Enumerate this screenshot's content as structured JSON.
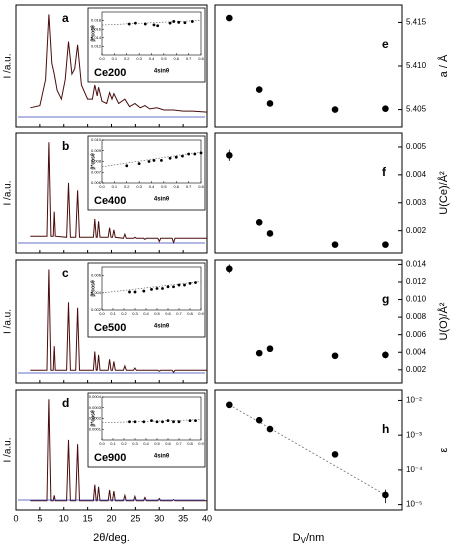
{
  "chart_data": [
    {
      "type": "line",
      "label": "a",
      "ylabel": "I /a.u.",
      "x": [
        3,
        5,
        6.2,
        6.9,
        7.5,
        8,
        8.6,
        9.5,
        10.3,
        11,
        11.7,
        12.3,
        12.9,
        13.7,
        15,
        16,
        16.5,
        17,
        17.3,
        18,
        19,
        19.6,
        20.1,
        20.5,
        21.5,
        22.8,
        23.8,
        24.9,
        26,
        27,
        28,
        29.5,
        31,
        33,
        35,
        37,
        40
      ],
      "series": [
        {
          "color": "#4a0c0c",
          "values": [
            14,
            16,
            40,
            100,
            55,
            45,
            30,
            22,
            40,
            75,
            45,
            50,
            72,
            35,
            22,
            22,
            35,
            25,
            33,
            20,
            18,
            28,
            22,
            27,
            18,
            22,
            15,
            18,
            14,
            16,
            13,
            14,
            12,
            12,
            11,
            11,
            10
          ]
        }
      ],
      "xlim": [
        0,
        40
      ],
      "ylim": [
        0,
        105
      ],
      "inset": {
        "sample": "Ce200",
        "xlabel": "4sinθ",
        "ylabel": "β*cosθ",
        "x": [
          0.22,
          0.27,
          0.35,
          0.42,
          0.45,
          0.55,
          0.58,
          0.62,
          0.67,
          0.73
        ],
        "values": [
          0.0172,
          0.0174,
          0.0172,
          0.017,
          0.0168,
          0.0174,
          0.0178,
          0.0176,
          0.0175,
          0.0178
        ],
        "xlim": [
          0,
          0.8
        ],
        "xticks": [
          {
            "value": 0,
            "label": "0.0"
          },
          0.1,
          0.2,
          0.3,
          0.4,
          0.5,
          0.6,
          0.7,
          0.8
        ],
        "ylim": [
          0.01,
          0.02
        ],
        "yticks": [
          {
            "value": 0.012,
            "label": "0.012"
          },
          {
            "value": 0.014,
            "label": "0.014"
          },
          {
            "value": 0.016,
            "label": "0.016"
          },
          {
            "value": 0.018,
            "label": "0.018"
          }
        ]
      }
    },
    {
      "type": "line",
      "label": "b",
      "ylabel": "I /a.u.",
      "x": [
        3,
        6.5,
        6.9,
        7.3,
        7.8,
        8,
        8.2,
        10.6,
        11,
        11.4,
        12.5,
        12.9,
        13.3,
        16.2,
        16.5,
        16.8,
        17,
        17.3,
        17.6,
        19.3,
        19.6,
        19.9,
        20.2,
        20.5,
        20.8,
        22.5,
        22.8,
        23.1,
        24.6,
        24.9,
        25.2,
        26.7,
        27,
        27.3,
        29.7,
        30,
        30.3,
        32.7,
        33,
        33.3,
        40
      ],
      "series": [
        {
          "color": "#4a0c0c",
          "values": [
            12,
            12,
            100,
            12,
            12,
            35,
            12,
            11,
            62,
            11,
            11,
            55,
            11,
            11,
            28,
            11,
            11,
            26,
            11,
            11,
            20,
            11,
            11,
            18,
            11,
            10,
            14,
            10,
            10,
            11,
            10,
            10,
            9,
            10,
            10,
            7,
            10,
            10,
            6,
            10,
            10
          ]
        }
      ],
      "xlim": [
        0,
        40
      ],
      "ylim": [
        0,
        105
      ],
      "inset": {
        "sample": "Ce400",
        "xlabel": "4sinθ",
        "ylabel": "β*cosθ",
        "x": [
          0.2,
          0.3,
          0.38,
          0.42,
          0.48,
          0.55,
          0.6,
          0.65,
          0.7,
          0.75,
          0.8
        ],
        "values": [
          0.0076,
          0.0078,
          0.008,
          0.0081,
          0.0081,
          0.0083,
          0.0084,
          0.0085,
          0.0087,
          0.0087,
          0.0088
        ],
        "xlim": [
          0,
          0.8
        ],
        "xticks": [
          {
            "value": 0,
            "label": "0.0"
          },
          0.1,
          0.2,
          0.3,
          0.4,
          0.5,
          0.6,
          0.7,
          0.8
        ],
        "ylim": [
          0.006,
          0.01
        ],
        "yticks": [
          {
            "value": 0.006,
            "label": "0.006"
          },
          0.007,
          {
            "value": 0.008,
            "label": "0.008"
          },
          0.009,
          {
            "value": 0.01,
            "label": "0.010"
          }
        ]
      }
    },
    {
      "type": "line",
      "label": "c",
      "ylabel": "I /a.u.",
      "x": [
        3,
        6.5,
        6.9,
        7.3,
        7.8,
        8,
        8.2,
        10.6,
        11,
        11.4,
        12.5,
        12.9,
        13.3,
        16.2,
        16.5,
        16.8,
        17,
        17.3,
        17.6,
        19.3,
        19.6,
        19.9,
        20.2,
        20.5,
        20.8,
        22.5,
        22.8,
        23.1,
        24.6,
        24.9,
        25.2,
        26.7,
        27,
        27.3,
        29.7,
        30,
        30.3,
        32.7,
        33,
        33.3,
        40
      ],
      "series": [
        {
          "color": "#4a0c0c",
          "values": [
            8,
            8,
            100,
            8,
            8,
            30,
            8,
            8,
            70,
            8,
            8,
            65,
            8,
            8,
            25,
            8,
            8,
            22,
            8,
            8,
            18,
            8,
            8,
            16,
            8,
            8,
            12,
            8,
            8,
            10,
            8,
            8,
            8,
            8,
            8,
            7,
            8,
            8,
            6,
            8,
            8
          ]
        }
      ],
      "xlim": [
        0,
        40
      ],
      "ylim": [
        0,
        105
      ],
      "inset": {
        "sample": "Ce500",
        "xlabel": "4sinθ",
        "ylabel": "β*cosθ",
        "x": [
          0.25,
          0.3,
          0.38,
          0.45,
          0.5,
          0.55,
          0.6,
          0.65,
          0.7,
          0.75,
          0.8,
          0.85
        ],
        "values": [
          0.0041,
          0.0041,
          0.0042,
          0.0044,
          0.0045,
          0.0045,
          0.0047,
          0.0047,
          0.0049,
          0.0049,
          0.0051,
          0.0052
        ],
        "xlim": [
          0,
          0.9
        ],
        "xticks": [
          {
            "value": 0,
            "label": "0.0"
          },
          0.1,
          0.2,
          0.3,
          0.4,
          0.5,
          0.6,
          0.7,
          0.8,
          0.9
        ],
        "ylim": [
          0.002,
          0.007
        ],
        "yticks": [
          {
            "value": 0.002,
            "label": "0.002"
          },
          {
            "value": 0.004,
            "label": "0.004"
          },
          {
            "value": 0.006,
            "label": "0.006"
          }
        ]
      }
    },
    {
      "type": "line",
      "label": "d",
      "ylabel": "I /a.u.",
      "xlabel": "2θ/deg.",
      "x": [
        3,
        6.5,
        6.9,
        7.3,
        7.8,
        8,
        8.2,
        10.6,
        11,
        11.4,
        12.5,
        12.9,
        13.3,
        16.2,
        16.5,
        16.8,
        17,
        17.3,
        17.6,
        19.3,
        19.6,
        19.9,
        20.2,
        20.5,
        20.8,
        22.5,
        22.8,
        23.1,
        24.6,
        24.9,
        25.2,
        26.7,
        27,
        27.3,
        29.7,
        30,
        30.3,
        32.7,
        33,
        33.3,
        40
      ],
      "series": [
        {
          "color": "#4a0c0c",
          "values": [
            5,
            5,
            100,
            5,
            5,
            10,
            5,
            5,
            62,
            5,
            5,
            58,
            5,
            5,
            20,
            5,
            5,
            18,
            5,
            5,
            15,
            5,
            5,
            14,
            5,
            5,
            10,
            5,
            5,
            9,
            5,
            5,
            8,
            5,
            5,
            7,
            5,
            5,
            6,
            5,
            5
          ]
        }
      ],
      "xlim": [
        0,
        40
      ],
      "ylim": [
        0,
        105
      ],
      "xticks": [
        0,
        5,
        10,
        15,
        20,
        25,
        30,
        35,
        40
      ],
      "inset": {
        "sample": "Ce900",
        "xlabel": "4sinθ",
        "ylabel": "β*cosθ",
        "x": [
          0.25,
          0.3,
          0.38,
          0.45,
          0.5,
          0.55,
          0.6,
          0.65,
          0.7,
          0.8,
          0.85
        ],
        "values": [
          0.00017,
          0.00017,
          0.00017,
          0.00018,
          0.00017,
          0.00017,
          0.00018,
          0.00017,
          0.00017,
          0.00018,
          0.00018
        ],
        "xlim": [
          0,
          0.9
        ],
        "xticks": [
          {
            "value": 0,
            "label": "0.0"
          },
          0.1,
          0.2,
          0.3,
          0.4,
          0.5,
          0.6,
          0.7,
          0.8,
          0.9
        ],
        "ylim": [
          0,
          0.0004
        ],
        "yticks": [
          0.0001,
          0.0002,
          0.0003,
          0.0004
        ]
      }
    },
    {
      "type": "scatter",
      "label": "e",
      "ylabel": "a / Å",
      "xscale": "log",
      "x": [
        3,
        7,
        9.5,
        60,
        250
      ],
      "values": [
        5.4155,
        5.4073,
        5.4057,
        5.405,
        5.4051
      ],
      "errors": [
        null,
        null,
        null,
        null,
        null
      ],
      "xlim": [
        2,
        400
      ],
      "ylim": [
        5.403,
        5.417
      ],
      "yticks": [
        5.405,
        {
          "value": 5.41,
          "label": "5.410"
        },
        5.415
      ]
    },
    {
      "type": "scatter",
      "label": "f",
      "ylabel": "U(Ce)/Å²",
      "xscale": "log",
      "x": [
        3,
        7,
        9.5,
        60,
        250
      ],
      "values": [
        0.0047,
        0.0023,
        0.0019,
        0.0015,
        0.0015
      ],
      "errors": [
        0.0002,
        null,
        null,
        null,
        null
      ],
      "xlim": [
        2,
        400
      ],
      "ylim": [
        0.0012,
        0.0055
      ],
      "yticks": [
        0.002,
        0.003,
        0.004,
        0.005
      ]
    },
    {
      "type": "scatter",
      "label": "g",
      "ylabel": "U(O)/Å²",
      "xscale": "log",
      "x": [
        3,
        7,
        9.5,
        60,
        250
      ],
      "values": [
        0.0135,
        0.0039,
        0.0044,
        0.0036,
        0.0037
      ],
      "errors": [
        0.0005,
        null,
        null,
        null,
        0.0004
      ],
      "xlim": [
        2,
        400
      ],
      "ylim": [
        0.0005,
        0.0145
      ],
      "yticks": [
        0.002,
        0.004,
        0.006,
        0.008,
        {
          "value": 0.01,
          "label": "0.010"
        },
        0.012,
        0.014
      ]
    },
    {
      "type": "scatter",
      "label": "h",
      "ylabel": "ε",
      "xscale": "log",
      "ylog": true,
      "xlabel": "D",
      "xlabel_sub": "V",
      "xlabel_rest": "/nm",
      "x": [
        3,
        7,
        9.5,
        60,
        250
      ],
      "values": [
        0.0075,
        0.0027,
        0.0015,
        0.00028,
        1.9e-05
      ],
      "errors": [
        0.0015,
        null,
        null,
        null,
        8e-06
      ],
      "xlim": [
        2,
        400
      ],
      "ylim": [
        7e-06,
        0.02
      ],
      "yticks": [
        {
          "value": 1e-05,
          "label": "10⁻⁵"
        },
        {
          "value": 0.0001,
          "label": "10⁻⁴"
        },
        {
          "value": 0.001,
          "label": "10⁻³"
        },
        {
          "value": 0.01,
          "label": "10⁻²"
        }
      ]
    }
  ]
}
